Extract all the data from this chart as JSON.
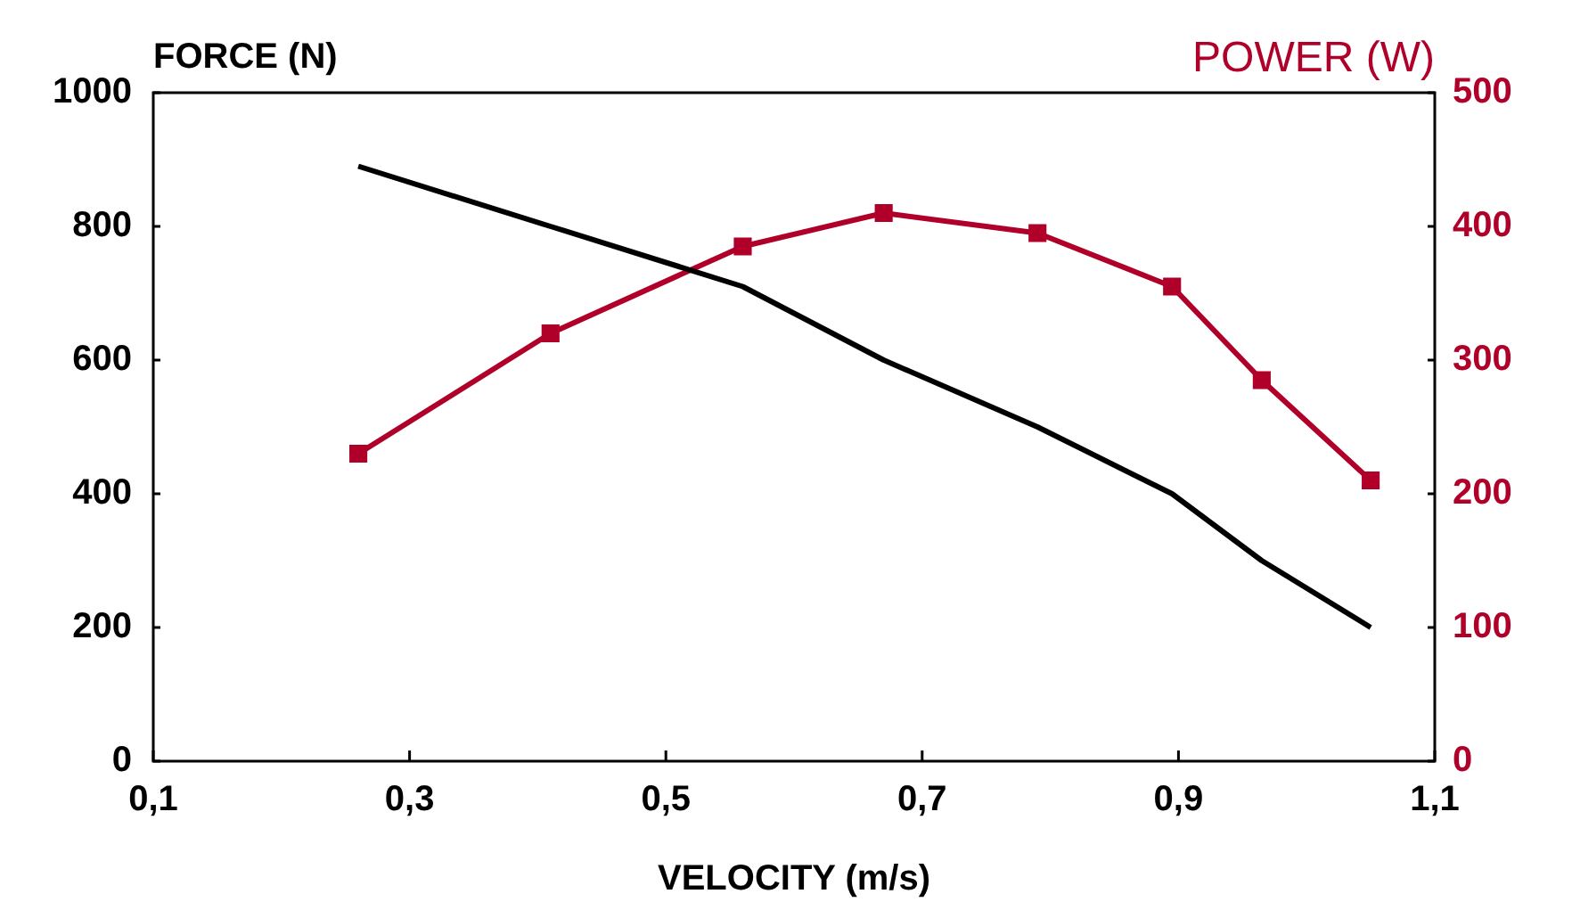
{
  "chart_data": {
    "type": "line",
    "xlabel": "VELOCITY (m/s)",
    "ylabel": "FORCE (N)",
    "y2label": "POWER (W)",
    "x": [
      0.26,
      0.41,
      0.56,
      0.67,
      0.79,
      0.895,
      0.965,
      1.05
    ],
    "xlim": [
      0.1,
      1.1
    ],
    "xticks": [
      {
        "value": 0.1,
        "label": "0,1"
      },
      {
        "value": 0.3,
        "label": "0,3"
      },
      {
        "value": 0.5,
        "label": "0,5"
      },
      {
        "value": 0.7,
        "label": "0,7"
      },
      {
        "value": 0.9,
        "label": "0,9"
      },
      {
        "value": 1.1,
        "label": "1,1"
      }
    ],
    "ylim": [
      0,
      1000
    ],
    "yticks": [
      0,
      200,
      400,
      600,
      800,
      1000
    ],
    "y2lim": [
      0,
      500
    ],
    "y2ticks": [
      0,
      100,
      200,
      300,
      400,
      500
    ],
    "series": [
      {
        "color": "#000000",
        "values": [
          890,
          800,
          710,
          600,
          500,
          400,
          300,
          200
        ],
        "marker": "none"
      },
      {
        "color": "#b0002a",
        "axis": "y2",
        "values": [
          230,
          320,
          385,
          410,
          395,
          355,
          285,
          210
        ],
        "marker": "square"
      }
    ],
    "grid": false,
    "legend": false,
    "line_style": "solid"
  }
}
